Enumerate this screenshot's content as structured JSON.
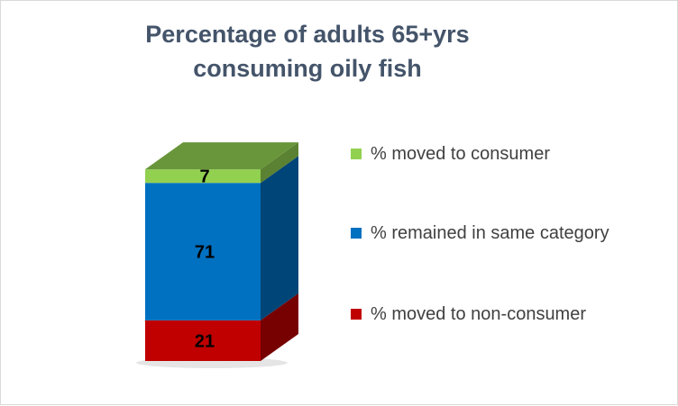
{
  "chart_data": {
    "type": "bar",
    "subtype": "stacked-3d-percent",
    "title": [
      "Percentage of adults 65+yrs",
      "consuming oily fish"
    ],
    "categories": [
      ""
    ],
    "ylim": [
      0,
      100
    ],
    "series": [
      {
        "name": "% moved to non-consumer",
        "values": [
          21
        ],
        "color": "#c00000"
      },
      {
        "name": "% remained in same category",
        "values": [
          71
        ],
        "color": "#0070c0"
      },
      {
        "name": "% moved to consumer",
        "values": [
          7
        ],
        "color": "#92d050"
      }
    ],
    "data_labels": [
      "21",
      "71",
      "7"
    ],
    "legend_position": "right",
    "grid": false
  }
}
